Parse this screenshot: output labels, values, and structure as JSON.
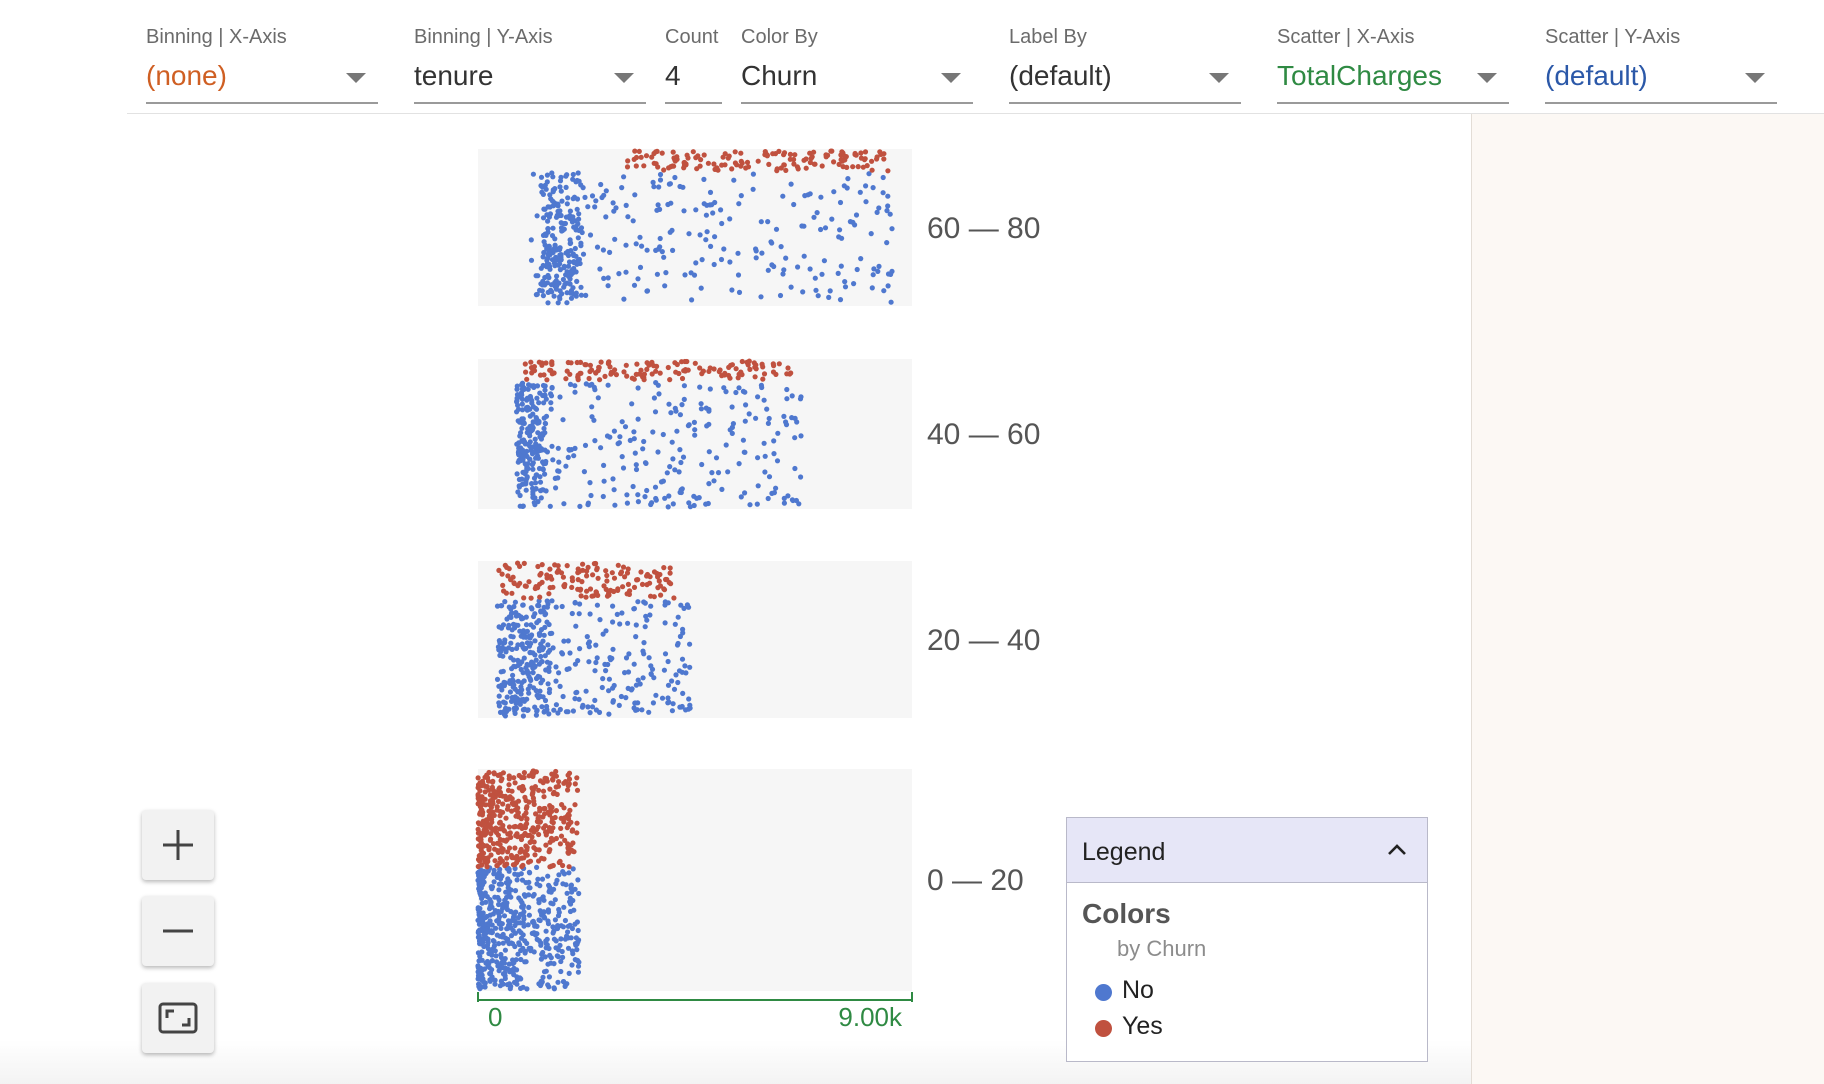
{
  "toolbar": {
    "binning_x": {
      "label": "Binning | X-Axis",
      "value": "(none)"
    },
    "binning_y": {
      "label": "Binning | Y-Axis",
      "value": "tenure"
    },
    "count": {
      "label": "Count",
      "value": "4"
    },
    "color_by": {
      "label": "Color By",
      "value": "Churn"
    },
    "label_by": {
      "label": "Label By",
      "value": "(default)"
    },
    "scatter_x": {
      "label": "Scatter | X-Axis",
      "value": "TotalCharges"
    },
    "scatter_y": {
      "label": "Scatter | Y-Axis",
      "value": "(default)"
    }
  },
  "colors": {
    "no": "#4f78cf",
    "yes": "#c0513f",
    "panel_bg": "#f6f6f6",
    "axis": "#2f8a43",
    "facet_label": "#555555"
  },
  "chart_data": {
    "type": "scatter",
    "x_field": "TotalCharges",
    "y_field": "(default)",
    "color_field": "Churn",
    "xlim": [
      0,
      9000
    ],
    "x_ticks": [
      "0",
      "9.00k"
    ],
    "facets": [
      {
        "label": "60 — 80",
        "groups": [
          {
            "category": "No",
            "x_range": [
              1100,
              8600
            ],
            "dense_x_range": [
              1300,
              2150
            ]
          },
          {
            "category": "Yes",
            "x_range": [
              3100,
              8500
            ]
          }
        ]
      },
      {
        "label": "40 — 60",
        "groups": [
          {
            "category": "No",
            "x_range": [
              800,
              6700
            ],
            "dense_x_range": [
              800,
              1400
            ]
          },
          {
            "category": "Yes",
            "x_range": [
              900,
              6500
            ]
          }
        ]
      },
      {
        "label": "20 — 40",
        "groups": [
          {
            "category": "No",
            "x_range": [
              400,
              4400
            ],
            "dense_x_range": [
              400,
              1500
            ]
          },
          {
            "category": "Yes",
            "x_range": [
              400,
              4100
            ]
          }
        ]
      },
      {
        "label": "0 — 20",
        "groups": [
          {
            "category": "No",
            "x_range": [
              0,
              2100
            ]
          },
          {
            "category": "Yes",
            "x_range": [
              0,
              2100
            ]
          }
        ]
      }
    ]
  },
  "zoom": {
    "zoom_in": "zoom-in-icon",
    "zoom_out": "zoom-out-icon",
    "fit": "fit-to-screen-icon"
  },
  "legend": {
    "title": "Legend",
    "heading": "Colors",
    "subheading": "by Churn",
    "toggle_icon": "chevron-up-icon",
    "items": [
      {
        "label": "No",
        "color": "#4f78cf"
      },
      {
        "label": "Yes",
        "color": "#c0513f"
      }
    ]
  }
}
